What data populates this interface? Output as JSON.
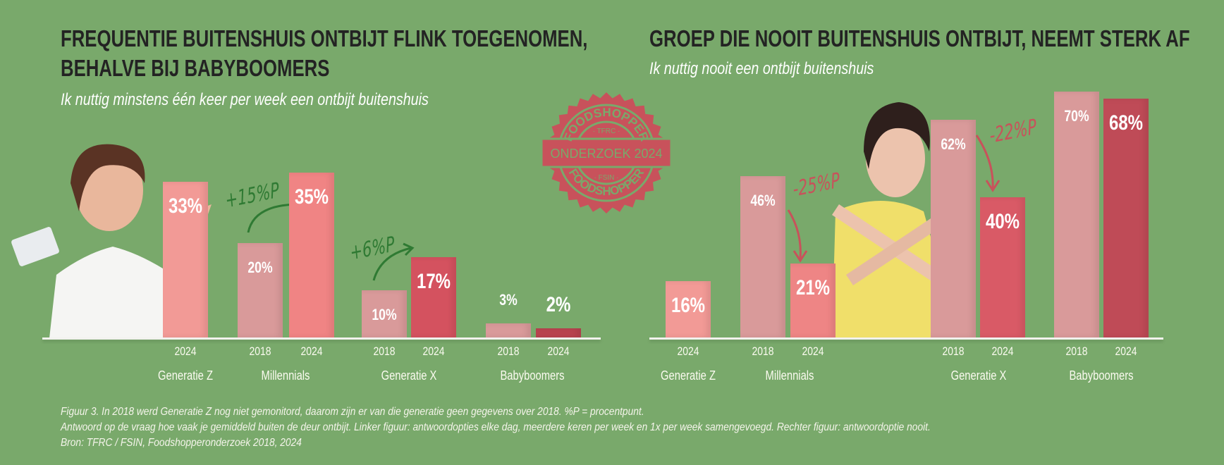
{
  "colors": {
    "background": "#79a96b",
    "stamp": "#c8525b",
    "green_arrow": "#2f7a33",
    "red_arrow": "#c8525b"
  },
  "stamp": {
    "top": "FOODSHOPPER",
    "upper_small": "TFRC",
    "band": "ONDERZOEK 2024",
    "lower_small": "FSIN",
    "bottom": "FOODSHOPPER"
  },
  "chart_data": [
    {
      "type": "bar",
      "title": "FREQUENTIE BUITENSHUIS ONTBIJT FLINK TOEGENOMEN, BEHALVE BIJ BABYBOOMERS",
      "title_lines": [
        "FREQUENTIE BUITENSHUIS ONTBIJT FLINK TOEGENOMEN,",
        "BEHALVE BIJ BABYBOOMERS"
      ],
      "subtitle": "Ik nuttig minstens één keer per week een ontbijt buitenshuis",
      "unit": "%",
      "groups": [
        "Generatie Z",
        "Millennials",
        "Generatie X",
        "Babyboomers"
      ],
      "bars": [
        {
          "group": "Generatie Z",
          "year": "2024",
          "value": 33,
          "label": "33%",
          "color": "#f29a96"
        },
        {
          "group": "Millennials",
          "year": "2018",
          "value": 20,
          "label": "20%",
          "color": "#d99a9a"
        },
        {
          "group": "Millennials",
          "year": "2024",
          "value": 35,
          "label": "35%",
          "color": "#f08484"
        },
        {
          "group": "Generatie X",
          "year": "2018",
          "value": 10,
          "label": "10%",
          "color": "#d99a9a"
        },
        {
          "group": "Generatie X",
          "year": "2024",
          "value": 17,
          "label": "17%",
          "color": "#d4525f"
        },
        {
          "group": "Babyboomers",
          "year": "2018",
          "value": 3,
          "label": "3%",
          "color": "#d99a9a"
        },
        {
          "group": "Babyboomers",
          "year": "2024",
          "value": 2,
          "label": "2%",
          "color": "#b9434f"
        }
      ],
      "annotations": [
        "+15%P",
        "+6%P"
      ]
    },
    {
      "type": "bar",
      "title": "GROEP DIE NOOIT BUITENSHUIS ONTBIJT, NEEMT STERK AF",
      "subtitle": "Ik nuttig nooit een ontbijt buitenshuis",
      "unit": "%",
      "groups": [
        "Generatie Z",
        "Millennials",
        "Generatie X",
        "Babyboomers"
      ],
      "bars": [
        {
          "group": "Generatie Z",
          "year": "2024",
          "value": 16,
          "label": "16%",
          "color": "#f29a96"
        },
        {
          "group": "Millennials",
          "year": "2018",
          "value": 46,
          "label": "46%",
          "color": "#d99a9a"
        },
        {
          "group": "Millennials",
          "year": "2024",
          "value": 21,
          "label": "21%",
          "color": "#ee8585"
        },
        {
          "group": "Generatie X",
          "year": "2018",
          "value": 62,
          "label": "62%",
          "color": "#d99a9a"
        },
        {
          "group": "Generatie X",
          "year": "2024",
          "value": 40,
          "label": "40%",
          "color": "#d95a66"
        },
        {
          "group": "Babyboomers",
          "year": "2018",
          "value": 70,
          "label": "70%",
          "color": "#d99a9a"
        },
        {
          "group": "Babyboomers",
          "year": "2024",
          "value": 68,
          "label": "68%",
          "color": "#bf4b57"
        }
      ],
      "annotations": [
        "-25%P",
        "-22%P"
      ]
    }
  ],
  "caption": [
    "Figuur 3. In 2018 werd Generatie Z nog niet gemonitord, daarom zijn er van die generatie geen gegevens over 2018. %P = procentpunt.",
    "Antwoord op de vraag hoe vaak je gemiddeld buiten de deur ontbijt. Linker figuur: antwoordopties elke dag, meerdere keren per week en 1x per week samengevoegd. Rechter figuur: antwoordoptie nooit.",
    "Bron: TFRC / FSIN, Foodshopperonderzoek 2018, 2024"
  ]
}
